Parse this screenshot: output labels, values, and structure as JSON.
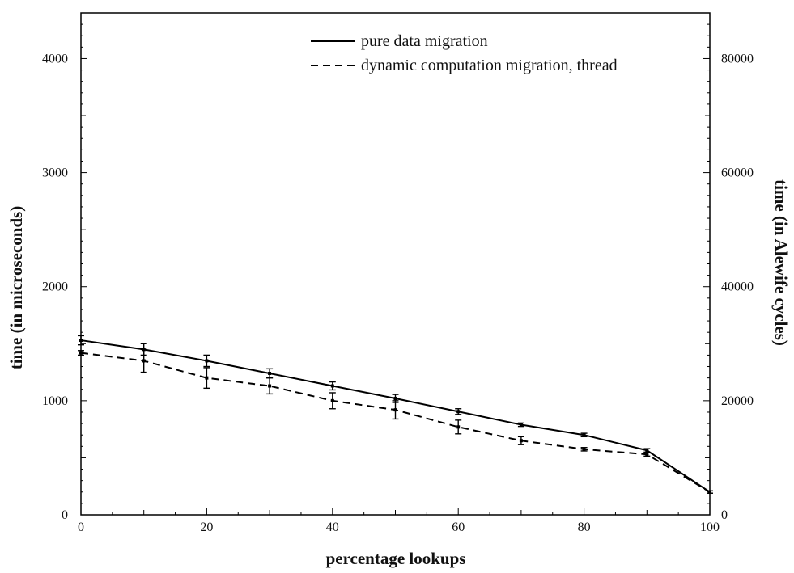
{
  "chart_data": {
    "type": "line",
    "xlabel": "percentage lookups",
    "ylabel": "time (in microseconds)",
    "y2label": "time (in Alewife cycles)",
    "xlim": [
      0,
      100
    ],
    "ylim": [
      0,
      4400
    ],
    "y2lim": [
      0,
      88000
    ],
    "xticks": [
      0,
      20,
      40,
      60,
      80,
      100
    ],
    "yticks": [
      0,
      1000,
      2000,
      3000,
      4000
    ],
    "y2ticks": [
      0,
      20000,
      40000,
      60000,
      80000
    ],
    "x": [
      0,
      10,
      20,
      30,
      40,
      50,
      60,
      70,
      80,
      90,
      100
    ],
    "legend_position": "top-right",
    "grid": false,
    "series": [
      {
        "name": "pure data migration",
        "style": "solid",
        "color": "#000000",
        "values": [
          1530,
          1450,
          1350,
          1240,
          1130,
          1020,
          905,
          790,
          700,
          565,
          200
        ],
        "err": [
          40,
          50,
          50,
          40,
          35,
          35,
          25,
          15,
          15,
          15,
          10
        ]
      },
      {
        "name": "dynamic computation migration, thread",
        "style": "dashed",
        "color": "#000000",
        "values": [
          1420,
          1350,
          1200,
          1130,
          1000,
          920,
          770,
          650,
          575,
          530,
          200
        ],
        "err": [
          20,
          100,
          90,
          70,
          70,
          80,
          60,
          35,
          15,
          15,
          10
        ]
      }
    ]
  }
}
